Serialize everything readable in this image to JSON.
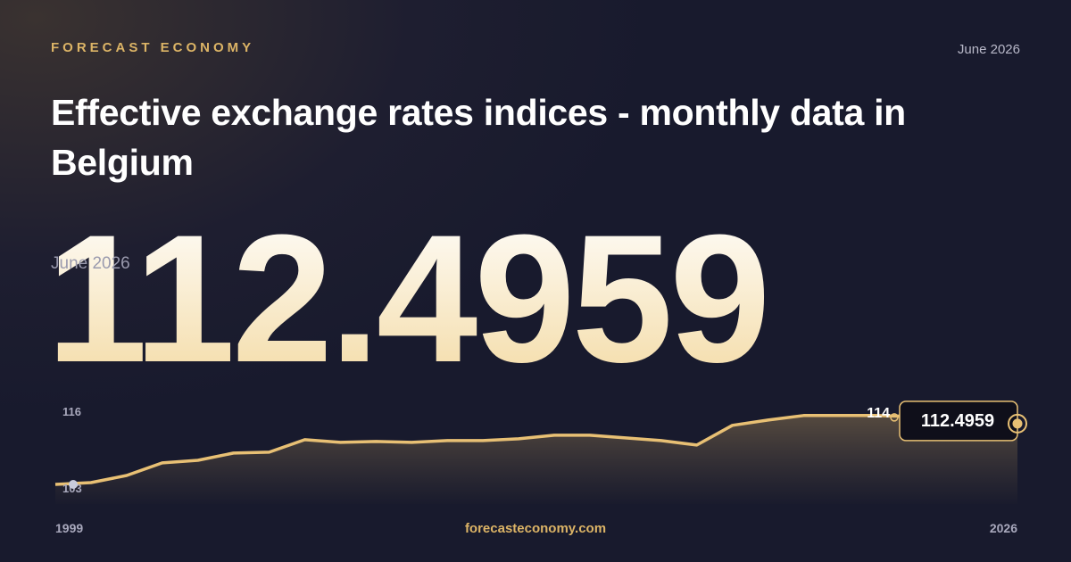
{
  "brand": "FORECAST ECONOMY",
  "date": "June 2026",
  "title": "Effective exchange rates indices - monthly data in Belgium",
  "site": "forecasteconomy.com",
  "chart_data": {
    "type": "area",
    "color": "#e8c074",
    "xlim": [
      1999,
      2026
    ],
    "xticks": [
      1999,
      2026
    ],
    "ylim": [
      103,
      116
    ],
    "yticks": [
      116,
      103
    ],
    "annotation": 114,
    "values": [
      103.27,
      103.54,
      104.63,
      106.53,
      106.93,
      108.02,
      108.16,
      110.06,
      109.65,
      109.78,
      109.65,
      109.92,
      109.92,
      110.19,
      110.73,
      110.73,
      110.33,
      109.92,
      109.24,
      112.23,
      113.04,
      113.72,
      113.72,
      113.72,
      113.58,
      113.45,
      113.18,
      112.4959
    ]
  }
}
